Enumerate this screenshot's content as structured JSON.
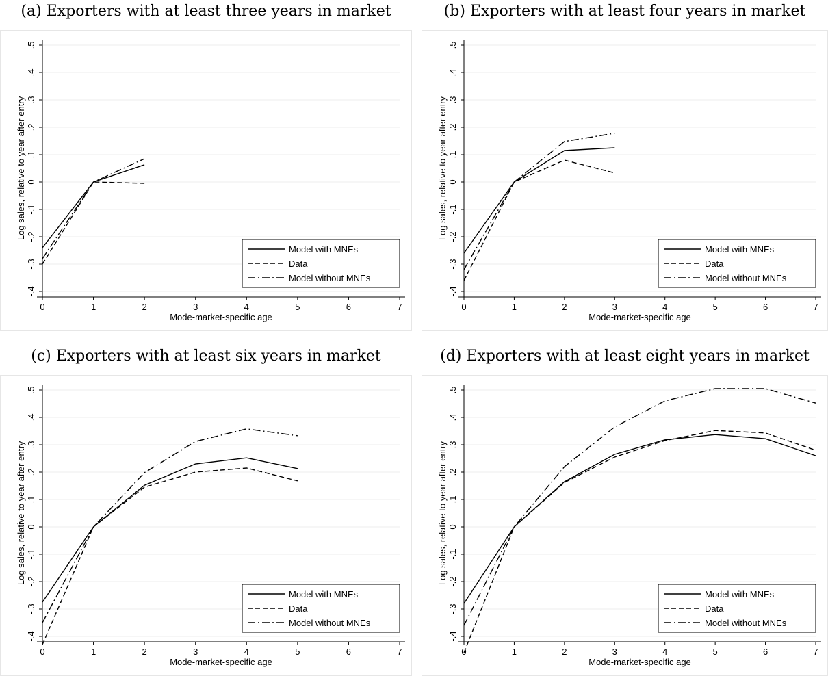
{
  "chart_data": [
    {
      "type": "line",
      "title": "(a) Exporters with at least three years in market",
      "xlabel": "Mode-market-specific age",
      "ylabel": "Log sales, relative to year after entry",
      "xlim": [
        0,
        7
      ],
      "ylim": [
        -0.4,
        0.5
      ],
      "x_ticks": [
        "0",
        "1",
        "2",
        "3",
        "4",
        "5",
        "6",
        "7"
      ],
      "y_ticks": [
        "-.4",
        "-.3",
        "-.2",
        "-.1",
        "0",
        ".1",
        ".2",
        ".3",
        ".4",
        ".5"
      ],
      "grid": "horizontal",
      "legend_position": "bottom-right",
      "series": [
        {
          "name": "Model with MNEs",
          "style": "solid",
          "x": [
            0,
            1,
            2
          ],
          "y": [
            -0.24,
            0.0,
            0.063
          ]
        },
        {
          "name": "Data",
          "style": "dashed",
          "x": [
            0,
            1,
            2
          ],
          "y": [
            -0.3,
            0.0,
            -0.005
          ]
        },
        {
          "name": "Model without MNEs",
          "style": "dashdot",
          "x": [
            0,
            1,
            2
          ],
          "y": [
            -0.28,
            0.0,
            0.085
          ]
        }
      ]
    },
    {
      "type": "line",
      "title": "(b) Exporters with at least four years in market",
      "xlabel": "Mode-market-specific age",
      "ylabel": "Log sales, relative to year after entry",
      "xlim": [
        0,
        7
      ],
      "ylim": [
        -0.4,
        0.5
      ],
      "x_ticks": [
        "0",
        "1",
        "2",
        "3",
        "4",
        "5",
        "6",
        "7"
      ],
      "y_ticks": [
        "-.4",
        "-.3",
        "-.2",
        "-.1",
        "0",
        ".1",
        ".2",
        ".3",
        ".4",
        ".5"
      ],
      "grid": "horizontal",
      "legend_position": "bottom-right",
      "series": [
        {
          "name": "Model with MNEs",
          "style": "solid",
          "x": [
            0,
            1,
            2,
            3
          ],
          "y": [
            -0.26,
            0.0,
            0.115,
            0.125
          ]
        },
        {
          "name": "Data",
          "style": "dashed",
          "x": [
            0,
            1,
            2,
            3
          ],
          "y": [
            -0.36,
            0.0,
            0.08,
            0.033
          ]
        },
        {
          "name": "Model without MNEs",
          "style": "dashdot",
          "x": [
            0,
            1,
            2,
            3
          ],
          "y": [
            -0.32,
            0.0,
            0.148,
            0.178
          ]
        }
      ]
    },
    {
      "type": "line",
      "title": "(c) Exporters with at least six years in market",
      "xlabel": "Mode-market-specific age",
      "ylabel": "Log sales, relative to year after entry",
      "xlim": [
        0,
        7
      ],
      "ylim": [
        -0.4,
        0.5
      ],
      "x_ticks": [
        "0",
        "1",
        "2",
        "3",
        "4",
        "5",
        "6",
        "7"
      ],
      "y_ticks": [
        "-.4",
        "-.3",
        "-.2",
        "-.1",
        "0",
        ".1",
        ".2",
        ".3",
        ".4",
        ".5"
      ],
      "grid": "horizontal",
      "legend_position": "bottom-right",
      "series": [
        {
          "name": "Model with MNEs",
          "style": "solid",
          "x": [
            0,
            1,
            2,
            3,
            4,
            5
          ],
          "y": [
            -0.275,
            0.0,
            0.152,
            0.23,
            0.252,
            0.213
          ]
        },
        {
          "name": "Data",
          "style": "dashed",
          "x": [
            0,
            1,
            2,
            3,
            4,
            5
          ],
          "y": [
            -0.43,
            0.0,
            0.145,
            0.2,
            0.215,
            0.168
          ]
        },
        {
          "name": "Model without MNEs",
          "style": "dashdot",
          "x": [
            0,
            1,
            2,
            3,
            4,
            5
          ],
          "y": [
            -0.35,
            0.0,
            0.198,
            0.312,
            0.358,
            0.333
          ]
        }
      ]
    },
    {
      "type": "line",
      "title": "(d) Exporters with at least eight years in market",
      "xlabel": "Mode-market-specific age",
      "ylabel": "Log sales, relative to year after entry",
      "xlim": [
        0,
        7
      ],
      "ylim": [
        -0.4,
        0.5
      ],
      "x_ticks": [
        "0",
        "1",
        "2",
        "3",
        "4",
        "5",
        "6",
        "7"
      ],
      "y_ticks": [
        "-.4",
        "-.3",
        "-.2",
        "-.1",
        "0",
        ".1",
        ".2",
        ".3",
        ".4",
        ".5"
      ],
      "grid": "horizontal",
      "legend_position": "bottom-right",
      "series": [
        {
          "name": "Model with MNEs",
          "style": "solid",
          "x": [
            0,
            1,
            2,
            3,
            4,
            5,
            6,
            7
          ],
          "y": [
            -0.28,
            0.0,
            0.165,
            0.265,
            0.318,
            0.337,
            0.322,
            0.26
          ]
        },
        {
          "name": "Data",
          "style": "dashed",
          "x": [
            0,
            1,
            2,
            3,
            4,
            5,
            6,
            7
          ],
          "y": [
            -0.46,
            0.0,
            0.162,
            0.255,
            0.315,
            0.352,
            0.343,
            0.28
          ]
        },
        {
          "name": "Model without MNEs",
          "style": "dashdot",
          "x": [
            0,
            1,
            2,
            3,
            4,
            5,
            6,
            7
          ],
          "y": [
            -0.36,
            0.0,
            0.22,
            0.365,
            0.46,
            0.505,
            0.505,
            0.452
          ]
        }
      ]
    }
  ]
}
